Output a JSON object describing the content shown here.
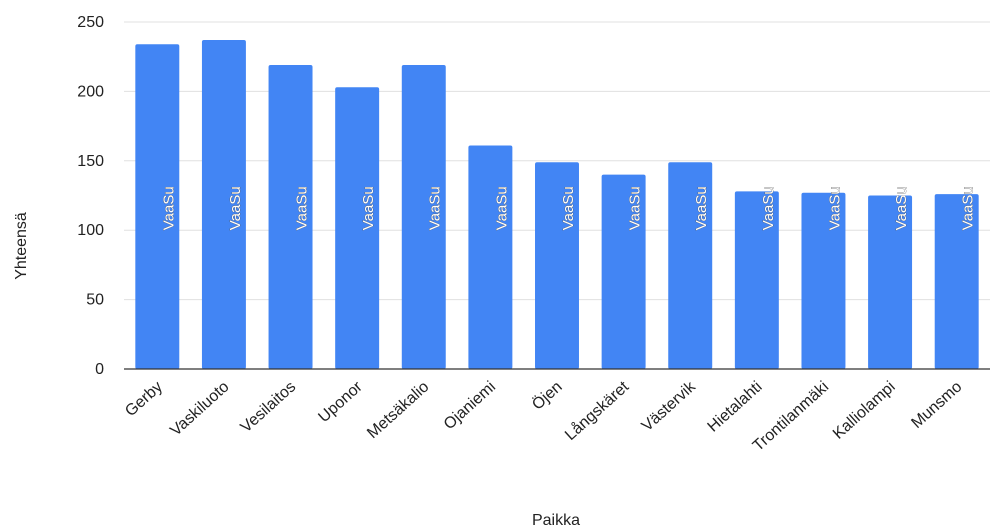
{
  "chart_data": {
    "type": "bar",
    "xlabel": "Paikka",
    "ylabel": "Yhteensä",
    "ylim": [
      0,
      250
    ],
    "yticks": [
      0,
      50,
      100,
      150,
      200,
      250
    ],
    "grid": true,
    "legend": "none",
    "colors": {
      "bar": "#4285f4",
      "grid": "#e0e0e0"
    },
    "categories": [
      "Gerby",
      "Vaskiluoto",
      "Vesilaitos",
      "Uponor",
      "Metsäkalio",
      "Ojaniemi",
      "Öjen",
      "Långskäret",
      "Västervik",
      "Hietalahti",
      "Trontilanmäki",
      "Kalliolampi",
      "Munsmo"
    ],
    "series": [
      {
        "values": [
          234,
          237,
          219,
          203,
          219,
          161,
          149,
          140,
          149,
          128,
          127,
          125,
          126
        ],
        "labels": [
          "VaaSu",
          "VaaSu",
          "VaaSu",
          "VaaSu",
          "VaaSu",
          "VaaSu",
          "VaaSu",
          "VaaSu",
          "VaaSu",
          "VaaSu",
          "VaaSu",
          "VaaSu",
          "VaaSu"
        ]
      }
    ]
  }
}
